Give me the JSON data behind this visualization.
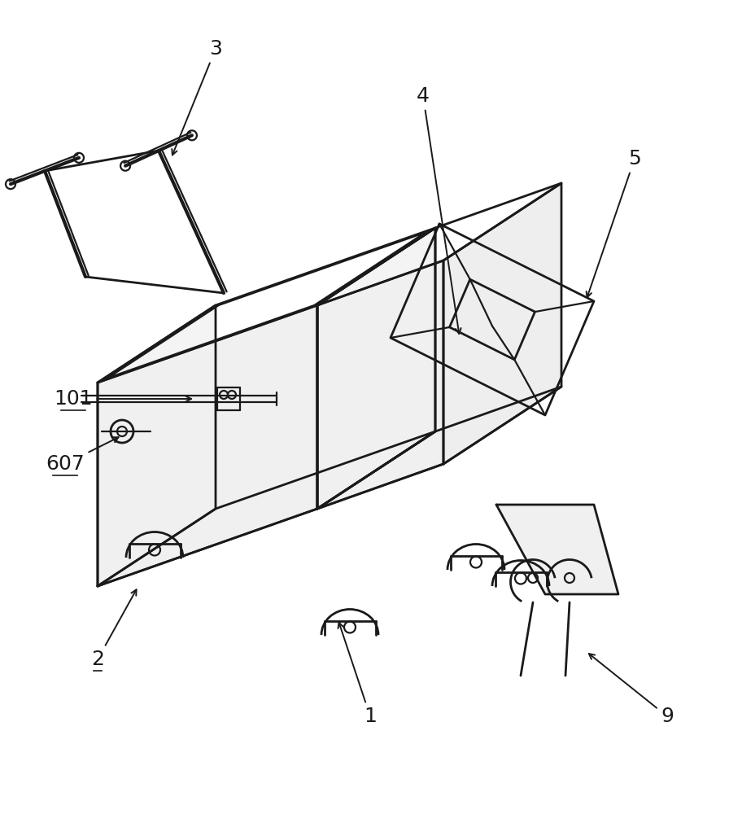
{
  "bg_color": "#ffffff",
  "lc": "#1a1a1a",
  "lw": 1.6,
  "blw": 2.0,
  "fig_w": 8.96,
  "fig_h": 10.0
}
